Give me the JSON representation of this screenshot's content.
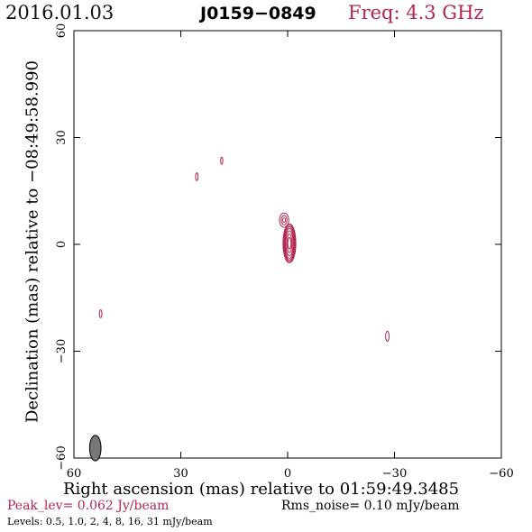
{
  "header": {
    "date": "2016.01.03",
    "source": "J0159−0849",
    "freq": "Freq: 4.3 GHz"
  },
  "footer": {
    "peak": "Peak_lev=  0.062 Jy/beam",
    "rms": "Rms_noise= 0.10 mJy/beam",
    "levels": "Levels: 0.5, 1.0,   2,   4,   8,  16,  31 mJy/beam"
  },
  "colors": {
    "contour": "#b2274e",
    "beam": "#777777"
  },
  "chart_data": {
    "type": "contour",
    "xlabel": "Right ascension (mas) relative to 01:59:49.3485",
    "ylabel": "Declination (mas) relative to −08:49:58.990",
    "xlim": [
      60,
      -60
    ],
    "ylim": [
      -60,
      60
    ],
    "x_ticks": [
      60,
      30,
      0,
      -30,
      -60
    ],
    "y_ticks": [
      -60,
      -30,
      0,
      30,
      60
    ],
    "x_tick_labels": [
      "60",
      "30",
      "0",
      "−30",
      "−60"
    ],
    "y_tick_labels": [
      "−60",
      "−30",
      "0",
      "30",
      "60"
    ],
    "levels_mJy": [
      0.5,
      1.0,
      2,
      4,
      8,
      16,
      31
    ],
    "components": [
      {
        "id": "core",
        "x": -0.5,
        "y": 0.3,
        "contours": [
          {
            "rx": 1.8,
            "ry": 5.5
          },
          {
            "rx": 1.6,
            "ry": 5.1
          },
          {
            "rx": 1.4,
            "ry": 4.7
          },
          {
            "rx": 1.2,
            "ry": 4.2
          },
          {
            "rx": 1.0,
            "ry": 3.5
          },
          {
            "rx": 0.7,
            "ry": 2.6
          },
          {
            "rx": 0.45,
            "ry": 1.6
          }
        ]
      },
      {
        "id": "knot-n",
        "x": 1.0,
        "y": 6.8,
        "contours": [
          {
            "rx": 1.3,
            "ry": 2.0
          },
          {
            "rx": 0.8,
            "ry": 1.3
          },
          {
            "rx": 0.4,
            "ry": 0.6
          }
        ]
      },
      {
        "id": "blob-1",
        "x": 25.5,
        "y": 19.0,
        "contours": [
          {
            "rx": 0.35,
            "ry": 1.1
          }
        ]
      },
      {
        "id": "blob-2",
        "x": 18.5,
        "y": 23.5,
        "contours": [
          {
            "rx": 0.3,
            "ry": 1.0
          }
        ]
      },
      {
        "id": "blob-3",
        "x": 52.5,
        "y": -19.5,
        "contours": [
          {
            "rx": 0.35,
            "ry": 1.1
          }
        ]
      },
      {
        "id": "blob-4",
        "x": -28.0,
        "y": -25.8,
        "contours": [
          {
            "rx": 0.5,
            "ry": 1.4
          }
        ]
      }
    ],
    "beam": {
      "x": 54.0,
      "y": -57.2,
      "bmaj": 3.6,
      "bmin": 1.6
    }
  }
}
